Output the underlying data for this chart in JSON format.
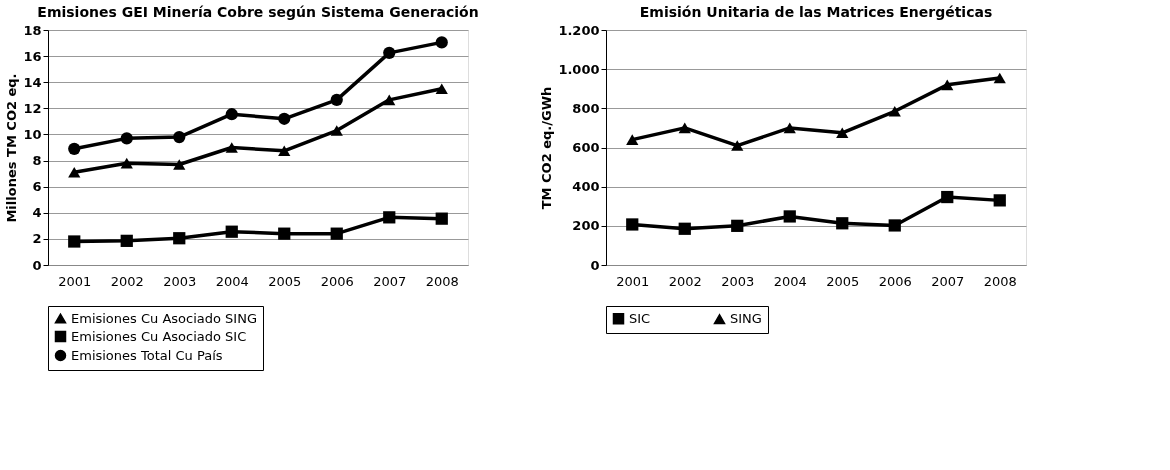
{
  "chart_data": [
    {
      "type": "line",
      "title": "Emisiones GEI Minería Cobre según Sistema Generación",
      "ylabel": "Millones TM CO2 eq.",
      "categories": [
        "2001",
        "2002",
        "2003",
        "2004",
        "2005",
        "2006",
        "2007",
        "2008"
      ],
      "ylim": [
        0,
        18
      ],
      "yticks": [
        0,
        2,
        4,
        6,
        8,
        10,
        12,
        14,
        16,
        18
      ],
      "grid": "y",
      "legend": "bottom",
      "series": [
        {
          "name": "Emisiones Cu Asociado SING",
          "color": "#000000",
          "marker": "triangle",
          "values": [
            7.1,
            7.8,
            7.7,
            9.0,
            8.75,
            10.3,
            12.65,
            13.5
          ]
        },
        {
          "name": "Emisiones Cu Asociado SIC",
          "color": "#000000",
          "marker": "square",
          "values": [
            1.8,
            1.85,
            2.05,
            2.55,
            2.4,
            2.4,
            3.65,
            3.55
          ]
        },
        {
          "name": "Emisiones Total Cu País",
          "color": "#000000",
          "marker": "circle",
          "values": [
            8.9,
            9.7,
            9.8,
            11.55,
            11.2,
            12.65,
            16.25,
            17.05
          ]
        }
      ]
    },
    {
      "type": "line",
      "title": "Emisión Unitaria de las Matrices Energéticas",
      "ylabel": "TM CO2 eq./GWh",
      "categories": [
        "2001",
        "2002",
        "2003",
        "2004",
        "2005",
        "2006",
        "2007",
        "2008"
      ],
      "ylim": [
        0,
        1200
      ],
      "yticks": [
        0,
        200,
        400,
        600,
        800,
        {
          "value": 1000,
          "label": "1.000"
        },
        {
          "value": 1200,
          "label": "1.200"
        }
      ],
      "grid": "y",
      "legend": "bottom",
      "series": [
        {
          "name": "SIC",
          "color": "#000000",
          "marker": "square",
          "values": [
            207,
            185,
            200,
            248,
            213,
            202,
            347,
            330
          ]
        },
        {
          "name": "SING",
          "color": "#000000",
          "marker": "triangle",
          "values": [
            640,
            700,
            610,
            700,
            675,
            785,
            920,
            955
          ]
        }
      ]
    }
  ]
}
